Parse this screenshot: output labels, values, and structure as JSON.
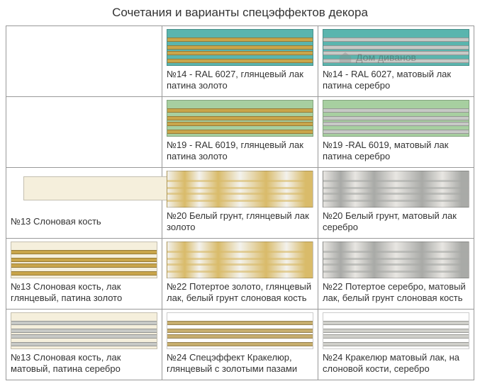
{
  "title": "Сочетания и варианты спецэффектов декора",
  "watermark": "Дом диванов",
  "colors": {
    "teal": "#5ab5ae",
    "green": "#a7cfa0",
    "ivory": "#f5efdc",
    "white": "#f3f2ed",
    "greywhite": "#e8e6e2",
    "gold": "#c9a54a",
    "goldLight": "#d9bb6a",
    "silver": "#c7c9c6",
    "silverDark": "#a9aaa7",
    "crackGold": "#c7ae6e",
    "crackSilver": "#cfcfca"
  },
  "cells": [
    {
      "empty": true
    },
    {
      "swatch": "teal-gold",
      "label": "№14 - RAL 6027, глянцевый лак патина золото"
    },
    {
      "swatch": "teal-silver",
      "label": "№14 - RAL 6027,  матовый  лак патина  серебро"
    },
    {
      "empty": true
    },
    {
      "swatch": "green-gold",
      "label": "№19 - RAL 6019, глянцевый лак патина золото"
    },
    {
      "swatch": "green-silver",
      "label": "№19 -RAL 6019, матовый лак патина серебро"
    },
    {
      "swatch": "ivory-plain",
      "label": "№13 Слоновая кость"
    },
    {
      "swatch": "white-gold-rough",
      "label": "№20 Белый грунт, глянцевый лак золото"
    },
    {
      "swatch": "white-silver-rough",
      "label": "№20 Белый грунт, матовый лак серебро"
    },
    {
      "swatch": "ivory-gold",
      "label": "№13 Слоновая кость, лак глянцевый, патина золото"
    },
    {
      "swatch": "worn-gold",
      "label": "№22 Потертое золото, глянцевый лак, белый грунт слоновая кость"
    },
    {
      "swatch": "worn-silver",
      "label": "№22 Потертое серебро, матовый лак, белый грунт слоновая кость"
    },
    {
      "swatch": "ivory-silver",
      "label": "№13 Слоновая кость, лак матовый, патина серебро"
    },
    {
      "swatch": "crack-gold",
      "label": "№24 Спецэффект Кракелюр, глянцевый с золотыми пазами"
    },
    {
      "swatch": "crack-silver",
      "label": "№24 Кракелюр матовый лак, на слоновой кости, серебро"
    }
  ]
}
